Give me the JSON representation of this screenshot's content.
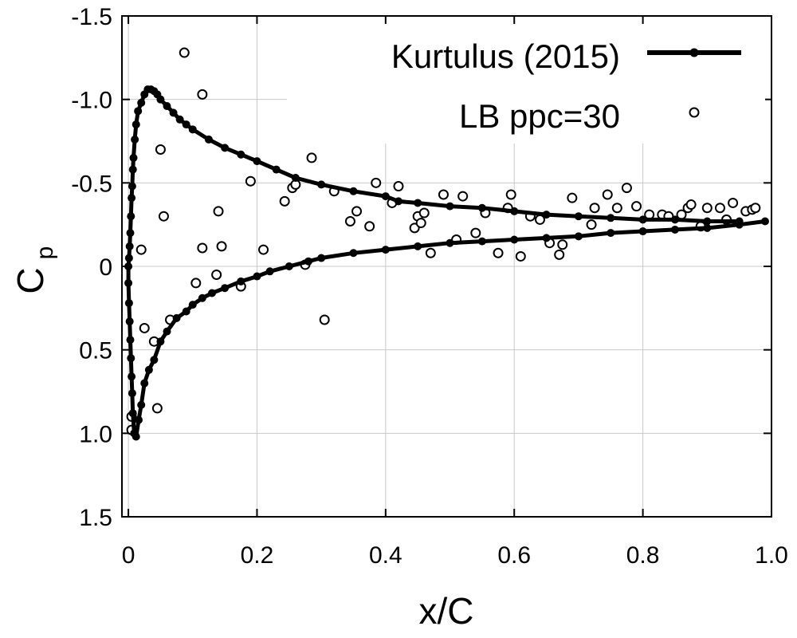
{
  "chart_data": {
    "type": "line",
    "xlabel": "x/C",
    "ylabel": "C",
    "ylabel_sub": "p",
    "xlim": [
      -0.01,
      1.0
    ],
    "ylim": [
      -1.5,
      1.5
    ],
    "y_inverted": true,
    "grid": true,
    "xticks": [
      0,
      0.2,
      0.4,
      0.6,
      0.8,
      1.0
    ],
    "xtick_labels": [
      "0",
      "0.2",
      "0.4",
      "0.6",
      "0.8",
      "1.0"
    ],
    "yticks": [
      -1.5,
      -1.0,
      -0.5,
      0,
      0.5,
      1.0,
      1.5
    ],
    "ytick_labels": [
      "-1.5",
      "-1.0",
      "-0.5",
      "0",
      "0.5",
      "1.0",
      "1.5"
    ],
    "legend_position": "top-right",
    "series": [
      {
        "name": "Kurtulus (2015)",
        "style": "line-with-filled-markers",
        "color": "#000000",
        "x": [
          0.95,
          0.9,
          0.85,
          0.8,
          0.75,
          0.7,
          0.65,
          0.6,
          0.55,
          0.5,
          0.45,
          0.42,
          0.4,
          0.35,
          0.3,
          0.26,
          0.23,
          0.2,
          0.175,
          0.15,
          0.125,
          0.1,
          0.09,
          0.08,
          0.07,
          0.06,
          0.05,
          0.045,
          0.04,
          0.035,
          0.03,
          0.025,
          0.02,
          0.015,
          0.012,
          0.01,
          0.008,
          0.007,
          0.006,
          0.005,
          0.004,
          0.003,
          0.002,
          0.001,
          0.0,
          0.0,
          0.001,
          0.002,
          0.003,
          0.004,
          0.005,
          0.006,
          0.007,
          0.009,
          0.012,
          0.016,
          0.02,
          0.025,
          0.032,
          0.04,
          0.05,
          0.06,
          0.075,
          0.09,
          0.1,
          0.115,
          0.13,
          0.15,
          0.175,
          0.2,
          0.22,
          0.25,
          0.28,
          0.3,
          0.35,
          0.4,
          0.45,
          0.5,
          0.55,
          0.6,
          0.65,
          0.7,
          0.75,
          0.8,
          0.85,
          0.9,
          0.95,
          0.99
        ],
        "values": [
          -0.27,
          -0.27,
          -0.28,
          -0.28,
          -0.29,
          -0.3,
          -0.31,
          -0.33,
          -0.35,
          -0.36,
          -0.38,
          -0.39,
          -0.42,
          -0.45,
          -0.49,
          -0.53,
          -0.58,
          -0.63,
          -0.67,
          -0.71,
          -0.76,
          -0.82,
          -0.85,
          -0.88,
          -0.92,
          -0.96,
          -1.0,
          -1.03,
          -1.05,
          -1.06,
          -1.06,
          -1.03,
          -0.98,
          -0.93,
          -0.85,
          -0.76,
          -0.65,
          -0.58,
          -0.48,
          -0.41,
          -0.3,
          -0.2,
          -0.12,
          -0.05,
          0.0,
          0.1,
          0.22,
          0.33,
          0.44,
          0.55,
          0.66,
          0.76,
          0.88,
          1.0,
          1.02,
          0.92,
          0.83,
          0.7,
          0.62,
          0.56,
          0.45,
          0.39,
          0.31,
          0.27,
          0.23,
          0.19,
          0.16,
          0.13,
          0.09,
          0.06,
          0.03,
          0.0,
          -0.03,
          -0.05,
          -0.08,
          -0.1,
          -0.12,
          -0.14,
          -0.15,
          -0.16,
          -0.17,
          -0.18,
          -0.2,
          -0.21,
          -0.22,
          -0.23,
          -0.25,
          -0.27
        ]
      },
      {
        "name": "LB ppc=30",
        "style": "open-circle-markers",
        "color": "#000000",
        "x": [
          0.087,
          0.115,
          0.05,
          0.055,
          0.105,
          0.137,
          0.145,
          0.175,
          0.21,
          0.255,
          0.305,
          0.243,
          0.26,
          0.275,
          0.19,
          0.115,
          0.065,
          0.025,
          0.04,
          0.005,
          0.005,
          0.045,
          0.02,
          0.14,
          0.285,
          0.32,
          0.345,
          0.355,
          0.375,
          0.385,
          0.41,
          0.42,
          0.445,
          0.45,
          0.455,
          0.46,
          0.47,
          0.49,
          0.51,
          0.52,
          0.54,
          0.555,
          0.575,
          0.59,
          0.595,
          0.61,
          0.625,
          0.64,
          0.655,
          0.67,
          0.675,
          0.69,
          0.72,
          0.725,
          0.745,
          0.76,
          0.775,
          0.79,
          0.81,
          0.83,
          0.84,
          0.86,
          0.87,
          0.875,
          0.89,
          0.9,
          0.92,
          0.93,
          0.94,
          0.96,
          0.97,
          0.975
        ],
        "values": [
          -1.28,
          -1.03,
          -0.7,
          -0.3,
          0.1,
          0.05,
          -0.12,
          0.12,
          -0.1,
          -0.47,
          0.32,
          -0.39,
          -0.49,
          -0.01,
          -0.51,
          -0.11,
          0.32,
          0.37,
          0.45,
          0.9,
          0.98,
          0.85,
          -0.1,
          -0.33,
          -0.65,
          -0.45,
          -0.27,
          -0.33,
          -0.24,
          -0.5,
          -0.38,
          -0.48,
          -0.23,
          -0.3,
          -0.26,
          -0.32,
          -0.08,
          -0.43,
          -0.16,
          -0.42,
          -0.2,
          -0.32,
          -0.08,
          -0.35,
          -0.43,
          -0.06,
          -0.3,
          -0.28,
          -0.14,
          -0.07,
          -0.13,
          -0.41,
          -0.25,
          -0.35,
          -0.43,
          -0.35,
          -0.47,
          -0.36,
          -0.31,
          -0.31,
          -0.3,
          -0.31,
          -0.35,
          -0.37,
          -0.24,
          -0.35,
          -0.35,
          -0.28,
          -0.38,
          -0.33,
          -0.34,
          -0.35
        ]
      }
    ]
  }
}
